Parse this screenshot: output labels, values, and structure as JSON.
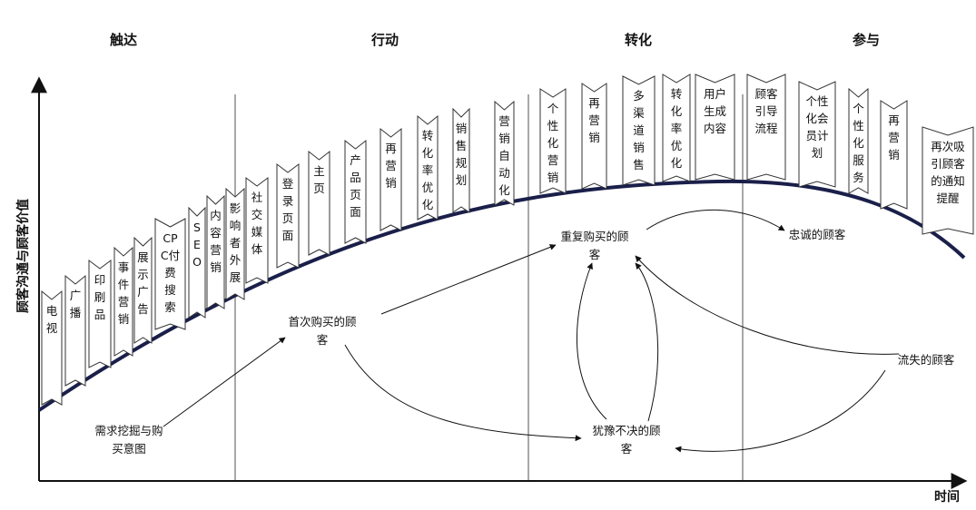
{
  "stages": [
    "触达",
    "行动",
    "转化",
    "参与"
  ],
  "axes": {
    "y_label": "顾客沟通与顾客价值",
    "x_label": "时间"
  },
  "tactics": [
    {
      "label": "电视"
    },
    {
      "label": "广播"
    },
    {
      "label": "印刷品"
    },
    {
      "label": "事件营销"
    },
    {
      "label": "展示广告"
    },
    {
      "label": "CPC付费搜索"
    },
    {
      "label": "SEO"
    },
    {
      "label": "内容营销"
    },
    {
      "label": "影响者外展"
    },
    {
      "label": "社交媒体"
    },
    {
      "label": "登录页面"
    },
    {
      "label": "主页"
    },
    {
      "label": "产品页面"
    },
    {
      "label": "再营销"
    },
    {
      "label": "转化率优化"
    },
    {
      "label": "销售规划"
    },
    {
      "label": "营销自动化"
    },
    {
      "label": "个性化营销"
    },
    {
      "label": "再营销"
    },
    {
      "label": "多渠道销售"
    },
    {
      "label": "转化率优化"
    },
    {
      "label": "用户生成内容"
    },
    {
      "label": "顾客引导流程"
    },
    {
      "label": "个性化会员计划"
    },
    {
      "label": "个性化服务"
    },
    {
      "label": "再营销"
    },
    {
      "label": "再次吸引顾客的通知提醒"
    }
  ],
  "customer_states": [
    {
      "id": "intent",
      "label": "需求挖掘与购买意图"
    },
    {
      "id": "first",
      "label": "首次购买的顾客"
    },
    {
      "id": "repeat",
      "label": "重复购买的顾客"
    },
    {
      "id": "loyal",
      "label": "忠诚的顾客"
    },
    {
      "id": "lost",
      "label": "流失的顾客"
    },
    {
      "id": "hesitant",
      "label": "犹豫不决的顾客"
    }
  ],
  "colors": {
    "curve": "#1a1f4a",
    "divider": "#a8a8a8",
    "axis": "#111111",
    "flag_stroke": "#333333"
  }
}
